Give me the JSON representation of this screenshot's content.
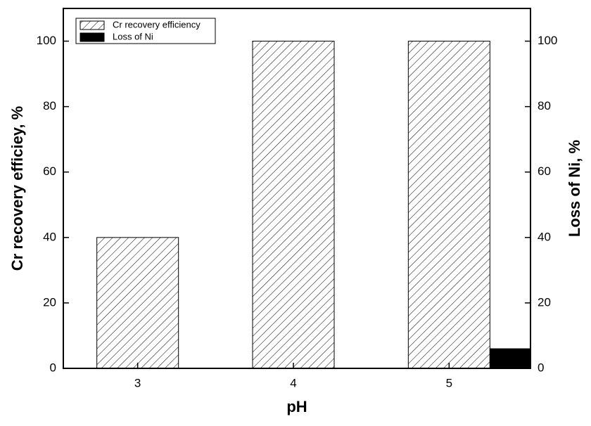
{
  "chart_data": {
    "type": "bar",
    "categories": [
      "3",
      "4",
      "5"
    ],
    "x_label": "pH",
    "y_label": "Cr recovery efficiey, %",
    "y2_label": "Loss of Ni, %",
    "series": [
      {
        "name": "Cr recovery efficiency",
        "color": "#000000",
        "pattern": "hatch",
        "values": [
          40,
          100,
          100
        ]
      },
      {
        "name": "Loss of Ni",
        "color": "#000000",
        "pattern": "solid",
        "axis": "y2",
        "values": [
          0,
          0,
          6
        ]
      }
    ],
    "ylim": [
      0,
      110
    ],
    "yticks": [
      0,
      20,
      40,
      60,
      80,
      100
    ],
    "y2lim": [
      0,
      110
    ],
    "y2ticks": [
      0,
      20,
      40,
      60,
      80,
      100
    ],
    "legend": "upper left"
  }
}
